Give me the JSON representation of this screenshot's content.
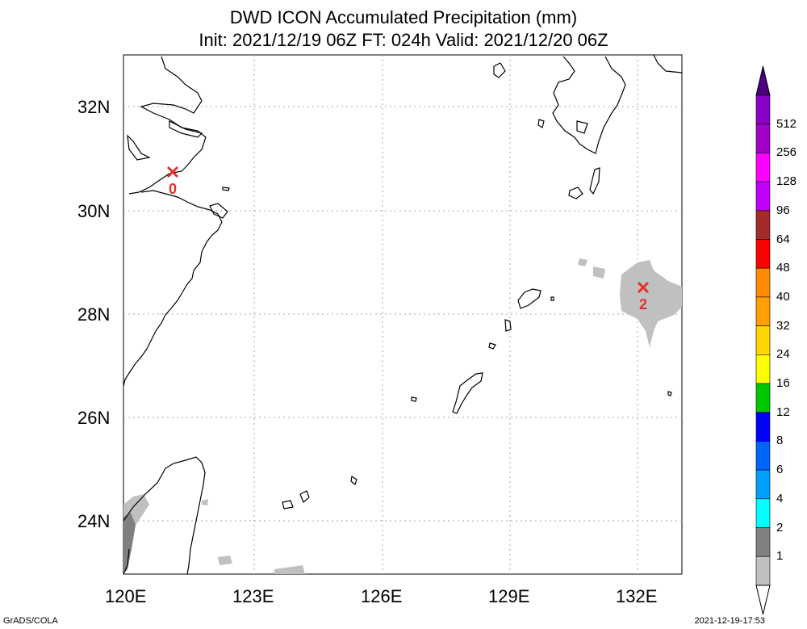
{
  "header": {
    "title": "DWD ICON Accumulated Precipitation (mm)",
    "subtitle": "Init: 2021/12/19 06Z  FT: 024h  Valid: 2021/12/20 06Z"
  },
  "map": {
    "lon_range": [
      120,
      133
    ],
    "lat_range": [
      23,
      33
    ],
    "lat_labels": [
      "32N",
      "30N",
      "28N",
      "26N",
      "24N"
    ],
    "lon_labels": [
      "120E",
      "123E",
      "126E",
      "129E",
      "132E"
    ],
    "markers": [
      {
        "label": "0",
        "lon": 121.1,
        "lat": 30.75,
        "color": "#e0322d"
      },
      {
        "label": "2",
        "lon": 132.1,
        "lat": 28.5,
        "color": "#e0322d"
      }
    ]
  },
  "colorbar": {
    "labels": [
      "512",
      "256",
      "128",
      "96",
      "64",
      "48",
      "40",
      "32",
      "24",
      "16",
      "12",
      "8",
      "6",
      "4",
      "2",
      "1"
    ],
    "colors": [
      "#8c00c8",
      "#a000c8",
      "#ff00ff",
      "#c000ff",
      "#a52a2a",
      "#ff0000",
      "#ff8c00",
      "#ffa000",
      "#ffd700",
      "#ffff00",
      "#00c800",
      "#0000ff",
      "#0064ff",
      "#00a0ff",
      "#00ffff",
      "#808080",
      "#c0c0c0"
    ],
    "top_cap_color": "#4b0082"
  },
  "footer": {
    "left": "GrADS/COLA",
    "right": "2021-12-19-17:53"
  }
}
